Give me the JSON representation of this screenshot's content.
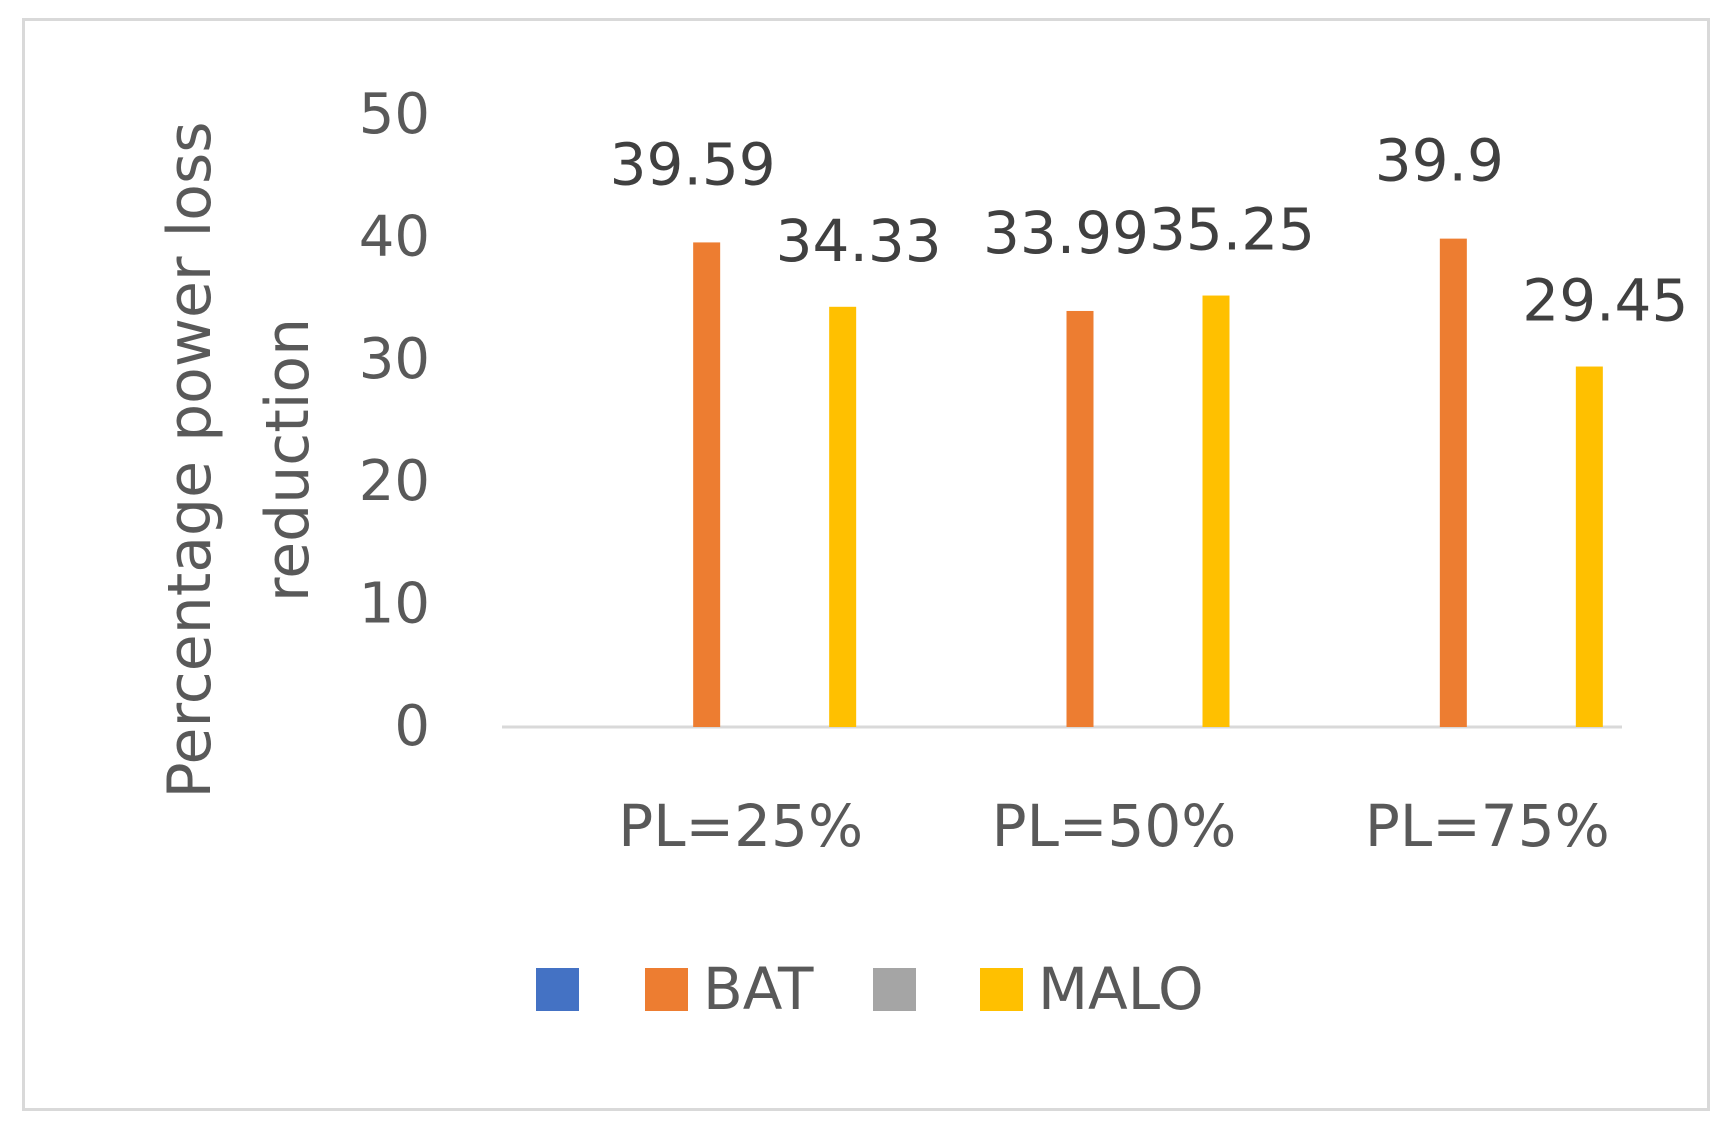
{
  "chart_data": {
    "type": "bar",
    "title": "",
    "xlabel": "",
    "ylabel": "Percentage power loss reduction",
    "ylabel_lines": [
      "Percentage power loss",
      "reduction"
    ],
    "ylim": [
      0,
      50
    ],
    "yticks": [
      "0",
      "10",
      "20",
      "30",
      "40",
      "50"
    ],
    "grid": false,
    "legend_position": "bottom",
    "categories": [
      "PL=25%",
      "PL=50%",
      "PL=75%"
    ],
    "series": [
      {
        "name": "",
        "color": "#4472C4",
        "values": [
          null,
          null,
          null
        ],
        "labels": [
          "",
          "",
          ""
        ]
      },
      {
        "name": "BAT",
        "color": "#ED7D31",
        "values": [
          39.59,
          33.99,
          39.9
        ],
        "labels": [
          "39.59",
          "33.99",
          "39.9"
        ]
      },
      {
        "name": "",
        "color": "#A5A5A5",
        "values": [
          null,
          null,
          null
        ],
        "labels": [
          "",
          "",
          ""
        ]
      },
      {
        "name": "MALO",
        "color": "#FFC000",
        "values": [
          34.33,
          35.25,
          29.45
        ],
        "labels": [
          "34.33",
          "35.25",
          "29.45"
        ]
      }
    ]
  }
}
